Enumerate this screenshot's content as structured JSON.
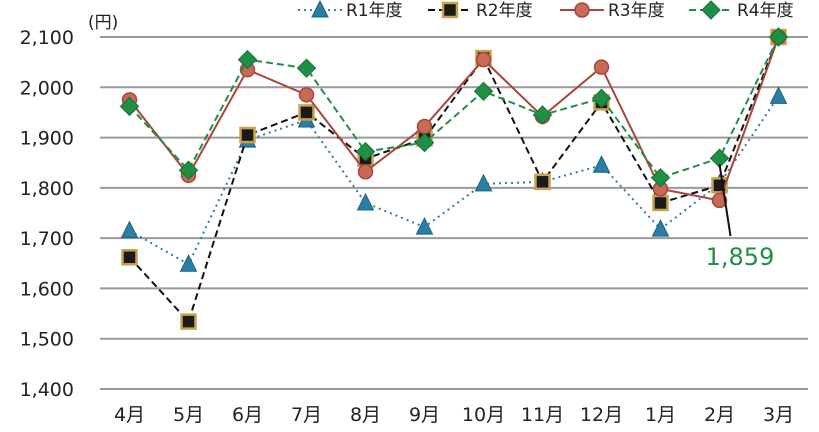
{
  "chart_data": {
    "type": "line",
    "unit_label": "(円)",
    "categories": [
      "4月",
      "5月",
      "6月",
      "7月",
      "8月",
      "9月",
      "10月",
      "11月",
      "12月",
      "1月",
      "2月",
      "3月"
    ],
    "ylim": [
      1400,
      2100
    ],
    "yticks": [
      1400,
      1500,
      1600,
      1700,
      1800,
      1900,
      2000,
      2100
    ],
    "ytick_labels": [
      "1,400",
      "1,500",
      "1,600",
      "1,700",
      "1,800",
      "1,900",
      "2,000",
      "2,100"
    ],
    "grid": true,
    "legend_position": "top",
    "series": [
      {
        "name": "R1年度",
        "color": "#2a7fa6",
        "marker": "triangle",
        "line_style": "dotted",
        "values": [
          1715,
          1648,
          1895,
          1935,
          1770,
          1722,
          1808,
          1812,
          1845,
          1718,
          1808,
          1982
        ]
      },
      {
        "name": "R2年度",
        "color": "#111111",
        "marker": "square",
        "marker_fill": "#1a1a1a",
        "marker_stroke": "#c9a24a",
        "line_style": "dashed",
        "values": [
          1662,
          1534,
          1905,
          1950,
          1858,
          1898,
          2058,
          1812,
          1970,
          1770,
          1805,
          2100
        ]
      },
      {
        "name": "R3年度",
        "color": "#a8463c",
        "marker": "circle",
        "marker_fill": "#c86a58",
        "line_style": "solid",
        "values": [
          1975,
          1825,
          2035,
          1985,
          1832,
          1922,
          2055,
          1942,
          2040,
          1798,
          1775,
          2100
        ]
      },
      {
        "name": "R4年度",
        "color": "#1e8f45",
        "marker": "diamond",
        "line_style": "dashed",
        "values": [
          1962,
          1835,
          2055,
          2038,
          1872,
          1890,
          1992,
          1945,
          1978,
          1820,
          1859,
          2100
        ]
      }
    ],
    "annotation": {
      "text": "1,859",
      "series": "R4年度",
      "category": "2月",
      "color": "#1e8f45"
    }
  }
}
